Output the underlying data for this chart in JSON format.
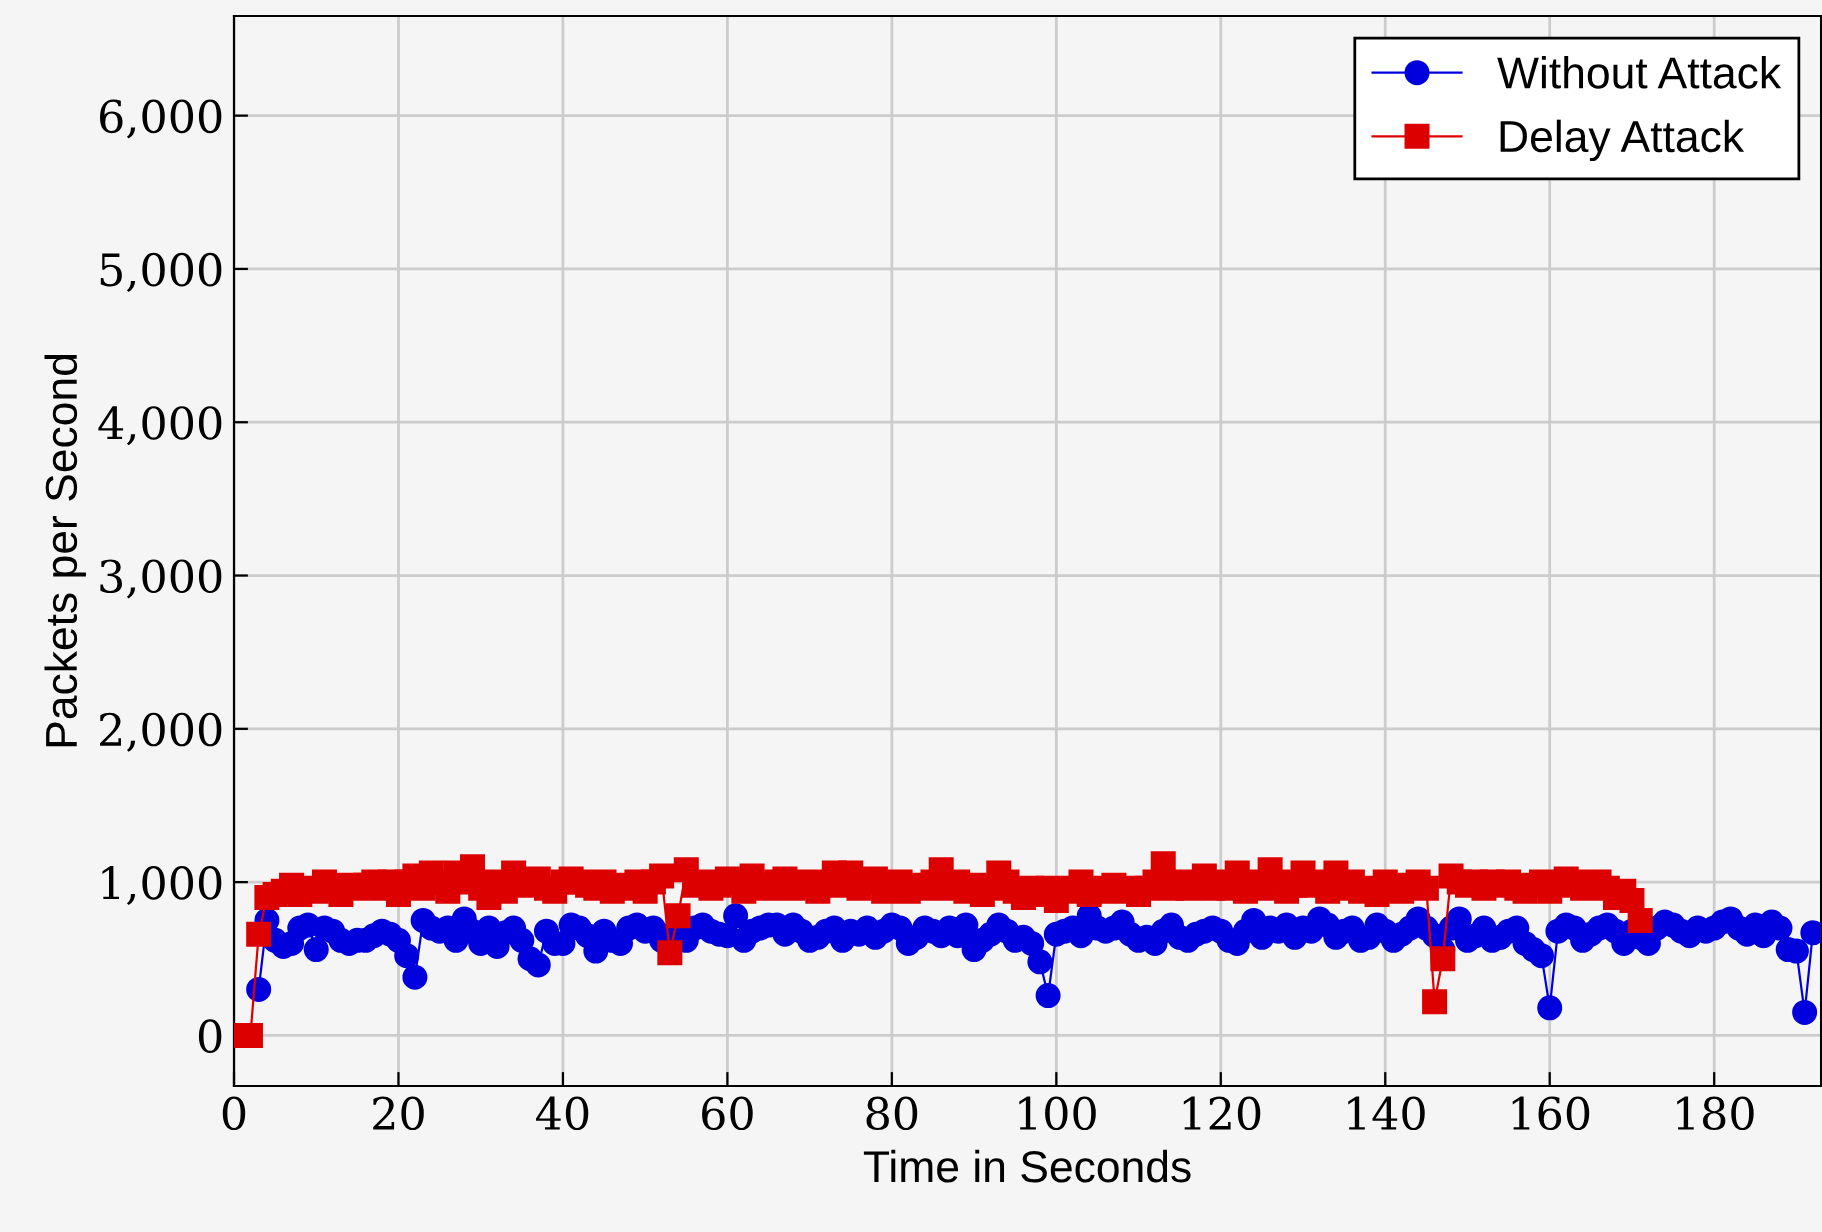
{
  "chart_data": {
    "type": "line",
    "xlabel": "Time in Seconds",
    "ylabel": "Packets per Second",
    "xlim": [
      0,
      193
    ],
    "xticks": [
      0,
      20,
      40,
      60,
      80,
      100,
      120,
      140,
      160,
      180
    ],
    "ylim": [
      -330,
      6650
    ],
    "yticks": [
      0,
      {
        "value": 1000,
        "label": "1,000"
      },
      {
        "value": 2000,
        "label": "2,000"
      },
      {
        "value": 3000,
        "label": "3,000"
      },
      {
        "value": 4000,
        "label": "4,000"
      },
      {
        "value": 5000,
        "label": "5,000"
      },
      {
        "value": 6000,
        "label": "6,000"
      }
    ],
    "grid": true,
    "legend": "top right",
    "line_style": "solid",
    "series": [
      {
        "name": "Without Attack",
        "color": "#0000dd",
        "marker": "circle",
        "x": [
          3,
          4,
          5,
          6,
          7,
          8,
          9,
          10,
          11,
          12,
          13,
          14,
          15,
          16,
          17,
          18,
          19,
          20,
          21,
          22,
          23,
          24,
          25,
          26,
          27,
          28,
          29,
          30,
          31,
          32,
          33,
          34,
          35,
          36,
          37,
          38,
          39,
          40,
          41,
          42,
          43,
          44,
          45,
          46,
          47,
          48,
          49,
          50,
          51,
          52,
          53,
          54,
          55,
          56,
          57,
          58,
          59,
          60,
          61,
          62,
          63,
          64,
          65,
          66,
          67,
          68,
          69,
          70,
          71,
          72,
          73,
          74,
          75,
          76,
          77,
          78,
          79,
          80,
          81,
          82,
          83,
          84,
          85,
          86,
          87,
          88,
          89,
          90,
          91,
          92,
          93,
          94,
          95,
          96,
          97,
          98,
          99,
          100,
          101,
          102,
          103,
          104,
          105,
          106,
          107,
          108,
          109,
          110,
          111,
          112,
          113,
          114,
          115,
          116,
          117,
          118,
          119,
          120,
          121,
          122,
          123,
          124,
          125,
          126,
          127,
          128,
          129,
          130,
          131,
          132,
          133,
          134,
          135,
          136,
          137,
          138,
          139,
          140,
          141,
          142,
          143,
          144,
          145,
          146,
          147,
          148,
          149,
          150,
          151,
          152,
          153,
          154,
          155,
          156,
          157,
          158,
          159,
          160,
          161,
          162,
          163,
          164,
          165,
          166,
          167,
          168,
          169,
          170,
          171,
          172,
          173,
          174,
          175,
          176,
          177,
          178,
          179,
          180,
          181,
          182,
          183,
          184,
          185,
          186,
          187,
          188,
          189,
          190,
          191,
          192
        ],
        "values": [
          300,
          750,
          620,
          580,
          600,
          700,
          720,
          560,
          700,
          680,
          620,
          600,
          620,
          620,
          650,
          680,
          660,
          620,
          520,
          380,
          750,
          700,
          680,
          700,
          620,
          760,
          680,
          600,
          700,
          580,
          670,
          700,
          620,
          500,
          460,
          680,
          600,
          600,
          720,
          700,
          650,
          550,
          680,
          620,
          600,
          700,
          720,
          680,
          700,
          620,
          650,
          700,
          620,
          700,
          720,
          680,
          660,
          650,
          780,
          620,
          680,
          700,
          720,
          720,
          660,
          720,
          680,
          620,
          640,
          680,
          700,
          620,
          680,
          660,
          700,
          640,
          680,
          720,
          700,
          600,
          640,
          700,
          680,
          650,
          700,
          650,
          720,
          560,
          620,
          660,
          720,
          680,
          620,
          640,
          600,
          480,
          260,
          660,
          680,
          700,
          650,
          780,
          700,
          680,
          700,
          740,
          660,
          620,
          640,
          600,
          680,
          720,
          640,
          620,
          660,
          680,
          700,
          680,
          620,
          600,
          680,
          750,
          640,
          700,
          680,
          720,
          640,
          700,
          680,
          760,
          720,
          640,
          680,
          700,
          620,
          640,
          720,
          680,
          620,
          660,
          700,
          760,
          700,
          650,
          560,
          700,
          760,
          620,
          650,
          700,
          620,
          640,
          680,
          700,
          600,
          560,
          520,
          180,
          680,
          720,
          700,
          620,
          660,
          700,
          720,
          680,
          600,
          680,
          640,
          600,
          700,
          740,
          720,
          680,
          650,
          700,
          680,
          700,
          740,
          760,
          700,
          660,
          720,
          650,
          740,
          700,
          560,
          550,
          150,
          670
        ]
      },
      {
        "name": "Delay Attack",
        "color": "#dd0000",
        "marker": "square",
        "x": [
          0,
          1,
          2,
          3,
          4,
          5,
          6,
          7,
          8,
          9,
          10,
          11,
          12,
          13,
          14,
          15,
          16,
          17,
          18,
          19,
          20,
          21,
          22,
          23,
          24,
          25,
          26,
          27,
          28,
          29,
          30,
          31,
          32,
          33,
          34,
          35,
          36,
          37,
          38,
          39,
          40,
          41,
          42,
          43,
          44,
          45,
          46,
          47,
          48,
          49,
          50,
          51,
          52,
          53,
          54,
          55,
          56,
          57,
          58,
          59,
          60,
          61,
          62,
          63,
          64,
          65,
          66,
          67,
          68,
          69,
          70,
          71,
          72,
          73,
          74,
          75,
          76,
          77,
          78,
          79,
          80,
          81,
          82,
          83,
          84,
          85,
          86,
          87,
          88,
          89,
          90,
          91,
          92,
          93,
          94,
          95,
          96,
          97,
          98,
          99,
          100,
          101,
          102,
          103,
          104,
          105,
          106,
          107,
          108,
          109,
          110,
          111,
          112,
          113,
          114,
          115,
          116,
          117,
          118,
          119,
          120,
          121,
          122,
          123,
          124,
          125,
          126,
          127,
          128,
          129,
          130,
          131,
          132,
          133,
          134,
          135,
          136,
          137,
          138,
          139,
          140,
          141,
          142,
          143,
          144,
          145,
          146,
          147,
          148,
          149,
          150,
          151,
          152,
          153,
          154,
          155,
          156,
          157,
          158,
          159,
          160,
          161,
          162,
          163,
          164,
          165,
          166,
          167,
          168,
          169,
          170,
          171
        ],
        "values": [
          0,
          0,
          0,
          660,
          900,
          920,
          940,
          980,
          920,
          960,
          940,
          1000,
          960,
          920,
          980,
          960,
          980,
          1000,
          960,
          1000,
          920,
          1000,
          1040,
          960,
          1060,
          1000,
          940,
          1060,
          1000,
          1100,
          960,
          900,
          1000,
          940,
          1060,
          980,
          1000,
          1020,
          960,
          940,
          1000,
          1020,
          1000,
          980,
          960,
          1000,
          940,
          980,
          960,
          1000,
          940,
          1000,
          1040,
          540,
          780,
          1080,
          980,
          1000,
          960,
          980,
          1020,
          1000,
          940,
          1040,
          980,
          960,
          1000,
          1020,
          960,
          1000,
          980,
          940,
          1000,
          1060,
          980,
          1060,
          960,
          1000,
          1020,
          940,
          980,
          1000,
          940,
          980,
          960,
          1000,
          1080,
          960,
          1000,
          940,
          980,
          920,
          960,
          1060,
          1000,
          940,
          900,
          960,
          920,
          960,
          880,
          940,
          960,
          1000,
          920,
          940,
          960,
          980,
          940,
          960,
          920,
          960,
          1000,
          1120,
          960,
          1000,
          960,
          980,
          1040,
          960,
          1000,
          960,
          1060,
          940,
          1000,
          960,
          1080,
          1000,
          940,
          980,
          1060,
          980,
          1000,
          940,
          1060,
          960,
          1000,
          940,
          960,
          920,
          1000,
          960,
          940,
          980,
          1000,
          960,
          220,
          500,
          1040,
          1000,
          980,
          1000,
          960,
          1000,
          980,
          1000,
          960,
          940,
          980,
          1000,
          940,
          980,
          1020,
          1000,
          960,
          980,
          1000,
          960,
          900,
          940,
          880,
          750
        ]
      }
    ]
  }
}
